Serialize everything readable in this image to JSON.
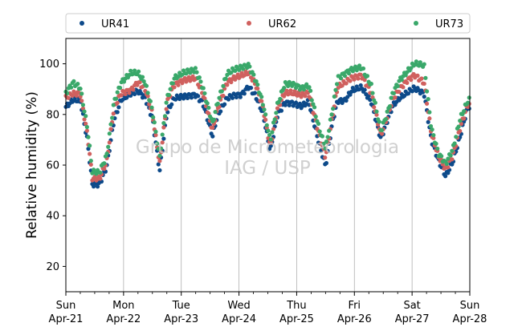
{
  "chart_data": {
    "type": "scatter",
    "title": "",
    "xlabel": "",
    "ylabel": "Relative humidity (%)",
    "ylim": [
      10,
      110
    ],
    "xlim": [
      "2024-04-21 00:00",
      "2024-04-28 00:00"
    ],
    "y_ticks": [
      "20",
      "40",
      "60",
      "80",
      "100"
    ],
    "x_ticks": [
      {
        "day": "Sun",
        "date": "Apr-21"
      },
      {
        "day": "Mon",
        "date": "Apr-22"
      },
      {
        "day": "Tue",
        "date": "Apr-23"
      },
      {
        "day": "Wed",
        "date": "Apr-24"
      },
      {
        "day": "Thu",
        "date": "Apr-25"
      },
      {
        "day": "Fri",
        "date": "Apr-26"
      },
      {
        "day": "Sat",
        "date": "Apr-27"
      },
      {
        "day": "Sun",
        "date": "Apr-28"
      }
    ],
    "grid": "vertical-at-day-ticks",
    "legend_position": "top (above plot, horizontal)",
    "watermark": [
      "Grupo de Micrometeorologia",
      "IAG / USP"
    ],
    "series": [
      {
        "name": "UR41",
        "color": "#0d4a8a",
        "points": [
          [
            "04-21 00:00",
            83
          ],
          [
            "04-21 03:00",
            86
          ],
          [
            "04-21 06:00",
            86
          ],
          [
            "04-21 09:00",
            70
          ],
          [
            "04-21 11:00",
            53
          ],
          [
            "04-21 14:00",
            53
          ],
          [
            "04-21 17:00",
            60
          ],
          [
            "04-21 20:00",
            78
          ],
          [
            "04-21 23:00",
            86
          ],
          [
            "04-22 03:00",
            88
          ],
          [
            "04-22 06:00",
            89
          ],
          [
            "04-22 09:00",
            86
          ],
          [
            "04-22 12:00",
            78
          ],
          [
            "04-22 15:00",
            57
          ],
          [
            "04-22 18:00",
            80
          ],
          [
            "04-22 21:00",
            86
          ],
          [
            "04-23 01:00",
            87
          ],
          [
            "04-23 06:00",
            88
          ],
          [
            "04-23 09:00",
            85
          ],
          [
            "04-23 13:00",
            72
          ],
          [
            "04-23 15:00",
            80
          ],
          [
            "04-23 19:00",
            87
          ],
          [
            "04-23 22:00",
            88
          ],
          [
            "04-24 01:00",
            88
          ],
          [
            "04-24 04:00",
            91
          ],
          [
            "04-24 07:00",
            87
          ],
          [
            "04-24 10:00",
            80
          ],
          [
            "04-24 13:00",
            65
          ],
          [
            "04-24 16:00",
            79
          ],
          [
            "04-24 19:00",
            84
          ],
          [
            "04-24 22:00",
            84
          ],
          [
            "04-25 02:00",
            83
          ],
          [
            "04-25 05:00",
            85
          ],
          [
            "04-25 09:00",
            70
          ],
          [
            "04-25 12:00",
            60
          ],
          [
            "04-25 15:00",
            78
          ],
          [
            "04-25 17:00",
            86
          ],
          [
            "04-25 20:00",
            86
          ],
          [
            "04-25 23:00",
            90
          ],
          [
            "04-26 03:00",
            91
          ],
          [
            "04-26 07:00",
            85
          ],
          [
            "04-26 11:00",
            70
          ],
          [
            "04-26 14:00",
            78
          ],
          [
            "04-26 16:00",
            83
          ],
          [
            "04-26 19:00",
            86
          ],
          [
            "04-26 22:00",
            88
          ],
          [
            "04-27 01:00",
            90
          ],
          [
            "04-27 05:00",
            88
          ],
          [
            "04-27 08:00",
            70
          ],
          [
            "04-27 11:00",
            62
          ],
          [
            "04-27 14:00",
            56
          ],
          [
            "04-27 17:00",
            62
          ],
          [
            "04-27 20:00",
            72
          ],
          [
            "04-27 23:00",
            83
          ],
          [
            "04-28 00:00",
            84
          ]
        ]
      },
      {
        "name": "UR62",
        "color": "#d0605e",
        "points": [
          [
            "04-21 00:00",
            86
          ],
          [
            "04-21 03:00",
            88
          ],
          [
            "04-21 06:00",
            88
          ],
          [
            "04-21 09:00",
            72
          ],
          [
            "04-21 11:00",
            55
          ],
          [
            "04-21 14:00",
            55
          ],
          [
            "04-21 17:00",
            62
          ],
          [
            "04-21 20:00",
            83
          ],
          [
            "04-21 23:00",
            89
          ],
          [
            "04-22 03:00",
            90
          ],
          [
            "04-22 06:00",
            93
          ],
          [
            "04-22 09:00",
            90
          ],
          [
            "04-22 12:00",
            80
          ],
          [
            "04-22 15:00",
            60
          ],
          [
            "04-22 18:00",
            84
          ],
          [
            "04-22 21:00",
            91
          ],
          [
            "04-23 01:00",
            93
          ],
          [
            "04-23 06:00",
            94
          ],
          [
            "04-23 09:00",
            88
          ],
          [
            "04-23 13:00",
            74
          ],
          [
            "04-23 15:00",
            82
          ],
          [
            "04-23 19:00",
            93
          ],
          [
            "04-23 22:00",
            95
          ],
          [
            "04-24 01:00",
            96
          ],
          [
            "04-24 04:00",
            97
          ],
          [
            "04-24 07:00",
            92
          ],
          [
            "04-24 10:00",
            83
          ],
          [
            "04-24 13:00",
            67
          ],
          [
            "04-24 16:00",
            82
          ],
          [
            "04-24 19:00",
            88
          ],
          [
            "04-24 22:00",
            88
          ],
          [
            "04-25 02:00",
            87
          ],
          [
            "04-25 05:00",
            88
          ],
          [
            "04-25 09:00",
            73
          ],
          [
            "04-25 12:00",
            63
          ],
          [
            "04-25 15:00",
            80
          ],
          [
            "04-25 17:00",
            91
          ],
          [
            "04-25 20:00",
            93
          ],
          [
            "04-25 23:00",
            95
          ],
          [
            "04-26 03:00",
            96
          ],
          [
            "04-26 07:00",
            89
          ],
          [
            "04-26 11:00",
            72
          ],
          [
            "04-26 14:00",
            80
          ],
          [
            "04-26 16:00",
            86
          ],
          [
            "04-26 19:00",
            90
          ],
          [
            "04-26 22:00",
            93
          ],
          [
            "04-27 01:00",
            95
          ],
          [
            "04-27 05:00",
            92
          ],
          [
            "04-27 08:00",
            72
          ],
          [
            "04-27 11:00",
            63
          ],
          [
            "04-27 14:00",
            58
          ],
          [
            "04-27 17:00",
            64
          ],
          [
            "04-27 20:00",
            75
          ],
          [
            "04-27 23:00",
            84
          ],
          [
            "04-28 00:00",
            85
          ]
        ]
      },
      {
        "name": "UR73",
        "color": "#3aa86a",
        "points": [
          [
            "04-21 00:00",
            88
          ],
          [
            "04-21 03:00",
            92
          ],
          [
            "04-21 06:00",
            90
          ],
          [
            "04-21 09:00",
            74
          ],
          [
            "04-21 11:00",
            57
          ],
          [
            "04-21 14:00",
            57
          ],
          [
            "04-21 17:00",
            64
          ],
          [
            "04-21 20:00",
            85
          ],
          [
            "04-21 23:00",
            93
          ],
          [
            "04-22 03:00",
            97
          ],
          [
            "04-22 06:00",
            97
          ],
          [
            "04-22 09:00",
            93
          ],
          [
            "04-22 12:00",
            82
          ],
          [
            "04-22 15:00",
            63
          ],
          [
            "04-22 18:00",
            86
          ],
          [
            "04-22 21:00",
            94
          ],
          [
            "04-23 01:00",
            96
          ],
          [
            "04-23 06:00",
            97
          ],
          [
            "04-23 09:00",
            90
          ],
          [
            "04-23 13:00",
            76
          ],
          [
            "04-23 15:00",
            84
          ],
          [
            "04-23 19:00",
            96
          ],
          [
            "04-23 22:00",
            98
          ],
          [
            "04-24 01:00",
            99
          ],
          [
            "04-24 04:00",
            100
          ],
          [
            "04-24 07:00",
            94
          ],
          [
            "04-24 10:00",
            85
          ],
          [
            "04-24 13:00",
            70
          ],
          [
            "04-24 16:00",
            84
          ],
          [
            "04-24 19:00",
            92
          ],
          [
            "04-24 22:00",
            92
          ],
          [
            "04-25 02:00",
            90
          ],
          [
            "04-25 05:00",
            91
          ],
          [
            "04-25 09:00",
            75
          ],
          [
            "04-25 12:00",
            66
          ],
          [
            "04-25 15:00",
            82
          ],
          [
            "04-25 17:00",
            94
          ],
          [
            "04-25 20:00",
            96
          ],
          [
            "04-25 23:00",
            98
          ],
          [
            "04-26 03:00",
            99
          ],
          [
            "04-26 07:00",
            92
          ],
          [
            "04-26 11:00",
            74
          ],
          [
            "04-26 14:00",
            82
          ],
          [
            "04-26 16:00",
            89
          ],
          [
            "04-26 19:00",
            94
          ],
          [
            "04-26 22:00",
            97
          ],
          [
            "04-27 01:00",
            100
          ],
          [
            "04-27 05:00",
            99
          ],
          [
            "04-27 08:00",
            74
          ],
          [
            "04-27 11:00",
            64
          ],
          [
            "04-27 14:00",
            60
          ],
          [
            "04-27 17:00",
            66
          ],
          [
            "04-27 20:00",
            78
          ],
          [
            "04-27 23:00",
            85
          ],
          [
            "04-28 00:00",
            86
          ]
        ]
      }
    ]
  }
}
